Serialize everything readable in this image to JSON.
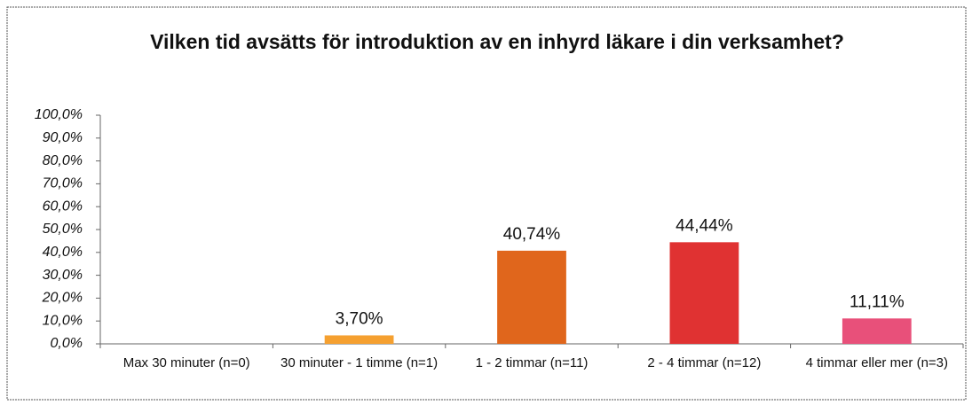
{
  "chart_data": {
    "type": "bar",
    "title": "Vilken tid avsätts för introduktion av en inhyrd läkare i din verksamhet?",
    "categories": [
      "Max 30 minuter (n=0)",
      "30 minuter - 1 timme (n=1)",
      "1 - 2 timmar (n=11)",
      "2 - 4 timmar (n=12)",
      "4 timmar eller mer (n=3)"
    ],
    "values": [
      0,
      3.7,
      40.74,
      44.44,
      11.11
    ],
    "value_labels": [
      null,
      "3,70%",
      "40,74%",
      "44,44%",
      "11,11%"
    ],
    "colors": [
      "#f5a030",
      "#f5a030",
      "#e0661c",
      "#e03232",
      "#e8507a"
    ],
    "ylim": [
      0,
      100
    ],
    "yticks": [
      {
        "value": 0,
        "label": "0,0%"
      },
      {
        "value": 10,
        "label": "10,0%"
      },
      {
        "value": 20,
        "label": "20,0%"
      },
      {
        "value": 30,
        "label": "30,0%"
      },
      {
        "value": 40,
        "label": "40,0%"
      },
      {
        "value": 50,
        "label": "50,0%"
      },
      {
        "value": 60,
        "label": "60,0%"
      },
      {
        "value": 70,
        "label": "70,0%"
      },
      {
        "value": 80,
        "label": "80,0%"
      },
      {
        "value": 90,
        "label": "90,0%"
      },
      {
        "value": 100,
        "label": "100,0%"
      }
    ]
  }
}
